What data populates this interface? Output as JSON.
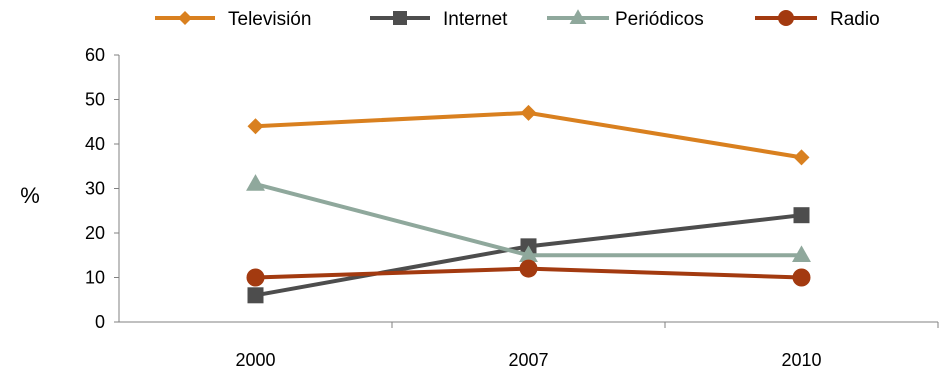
{
  "chart_data": {
    "type": "line",
    "title": "",
    "xlabel": "",
    "ylabel": "%",
    "ylim": [
      0,
      60
    ],
    "yticks": [
      0,
      10,
      20,
      30,
      40,
      50,
      60
    ],
    "categories": [
      "2000",
      "2007",
      "2010"
    ],
    "grid": false,
    "legend_position": "top",
    "series": [
      {
        "name": "Televisión",
        "values": [
          44,
          47,
          37
        ],
        "color": "#D9801F",
        "marker": "diamond"
      },
      {
        "name": "Internet",
        "values": [
          6,
          17,
          24
        ],
        "color": "#4D4D4D",
        "marker": "square"
      },
      {
        "name": "Periódicos",
        "values": [
          31,
          15,
          15
        ],
        "color": "#8FA89C",
        "marker": "triangle"
      },
      {
        "name": "Radio",
        "values": [
          10,
          12,
          10
        ],
        "color": "#A33A10",
        "marker": "circle"
      }
    ]
  }
}
